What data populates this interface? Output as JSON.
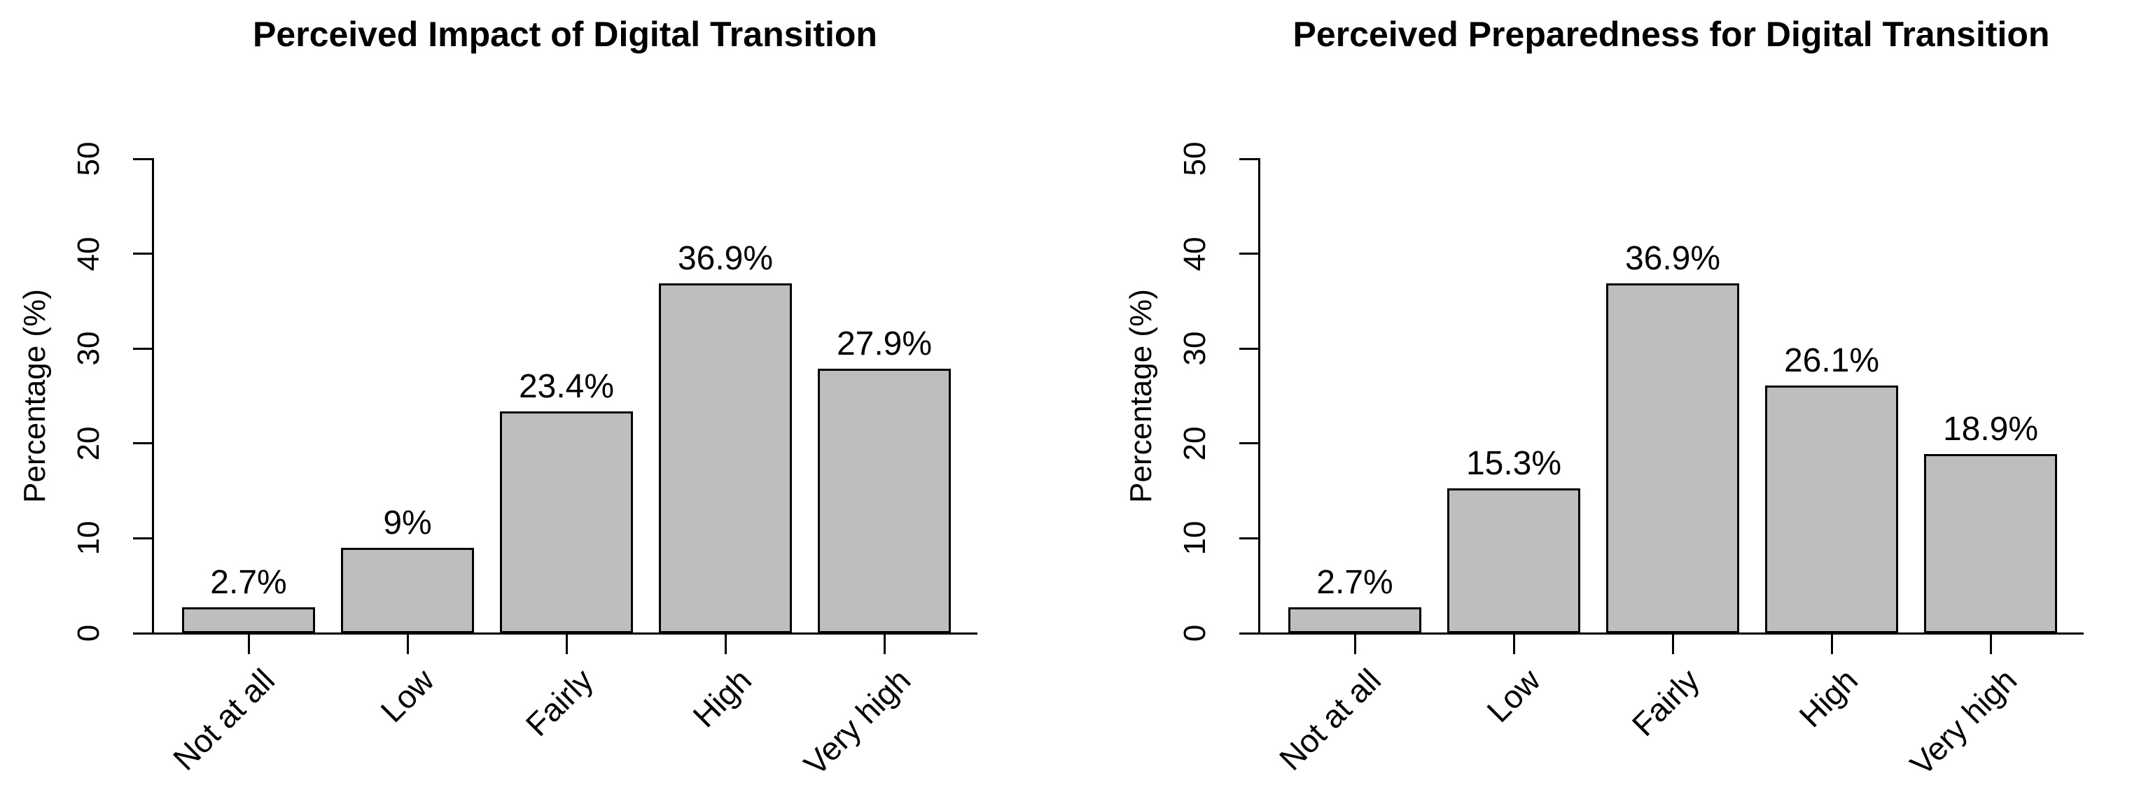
{
  "figure": {
    "background": "#FFFFFF",
    "text_color": "#000000"
  },
  "chart_data": [
    {
      "type": "bar",
      "title": "Perceived Impact of Digital Transition",
      "ylabel": "Percentage (%)",
      "xlabel": "",
      "categories": [
        "Not at all",
        "Low",
        "Fairly",
        "High",
        "Very high"
      ],
      "values": [
        2.7,
        9,
        23.4,
        36.9,
        27.9
      ],
      "value_labels": [
        "2.7%",
        "9%",
        "23.4%",
        "36.9%",
        "27.9%"
      ],
      "ylim": [
        0,
        50
      ],
      "yticks": [
        0,
        10,
        20,
        30,
        40,
        50
      ],
      "grid": "off",
      "legend": "none",
      "bar_fill": "#BEBEBE",
      "bar_border": "#000000"
    },
    {
      "type": "bar",
      "title": "Perceived Preparedness for Digital Transition",
      "ylabel": "Percentage (%)",
      "xlabel": "",
      "categories": [
        "Not at all",
        "Low",
        "Fairly",
        "High",
        "Very high"
      ],
      "values": [
        2.7,
        15.3,
        36.9,
        26.1,
        18.9
      ],
      "value_labels": [
        "2.7%",
        "15.3%",
        "36.9%",
        "26.1%",
        "18.9%"
      ],
      "ylim": [
        0,
        50
      ],
      "yticks": [
        0,
        10,
        20,
        30,
        40,
        50
      ],
      "grid": "off",
      "legend": "none",
      "bar_fill": "#BEBEBE",
      "bar_border": "#000000"
    }
  ]
}
